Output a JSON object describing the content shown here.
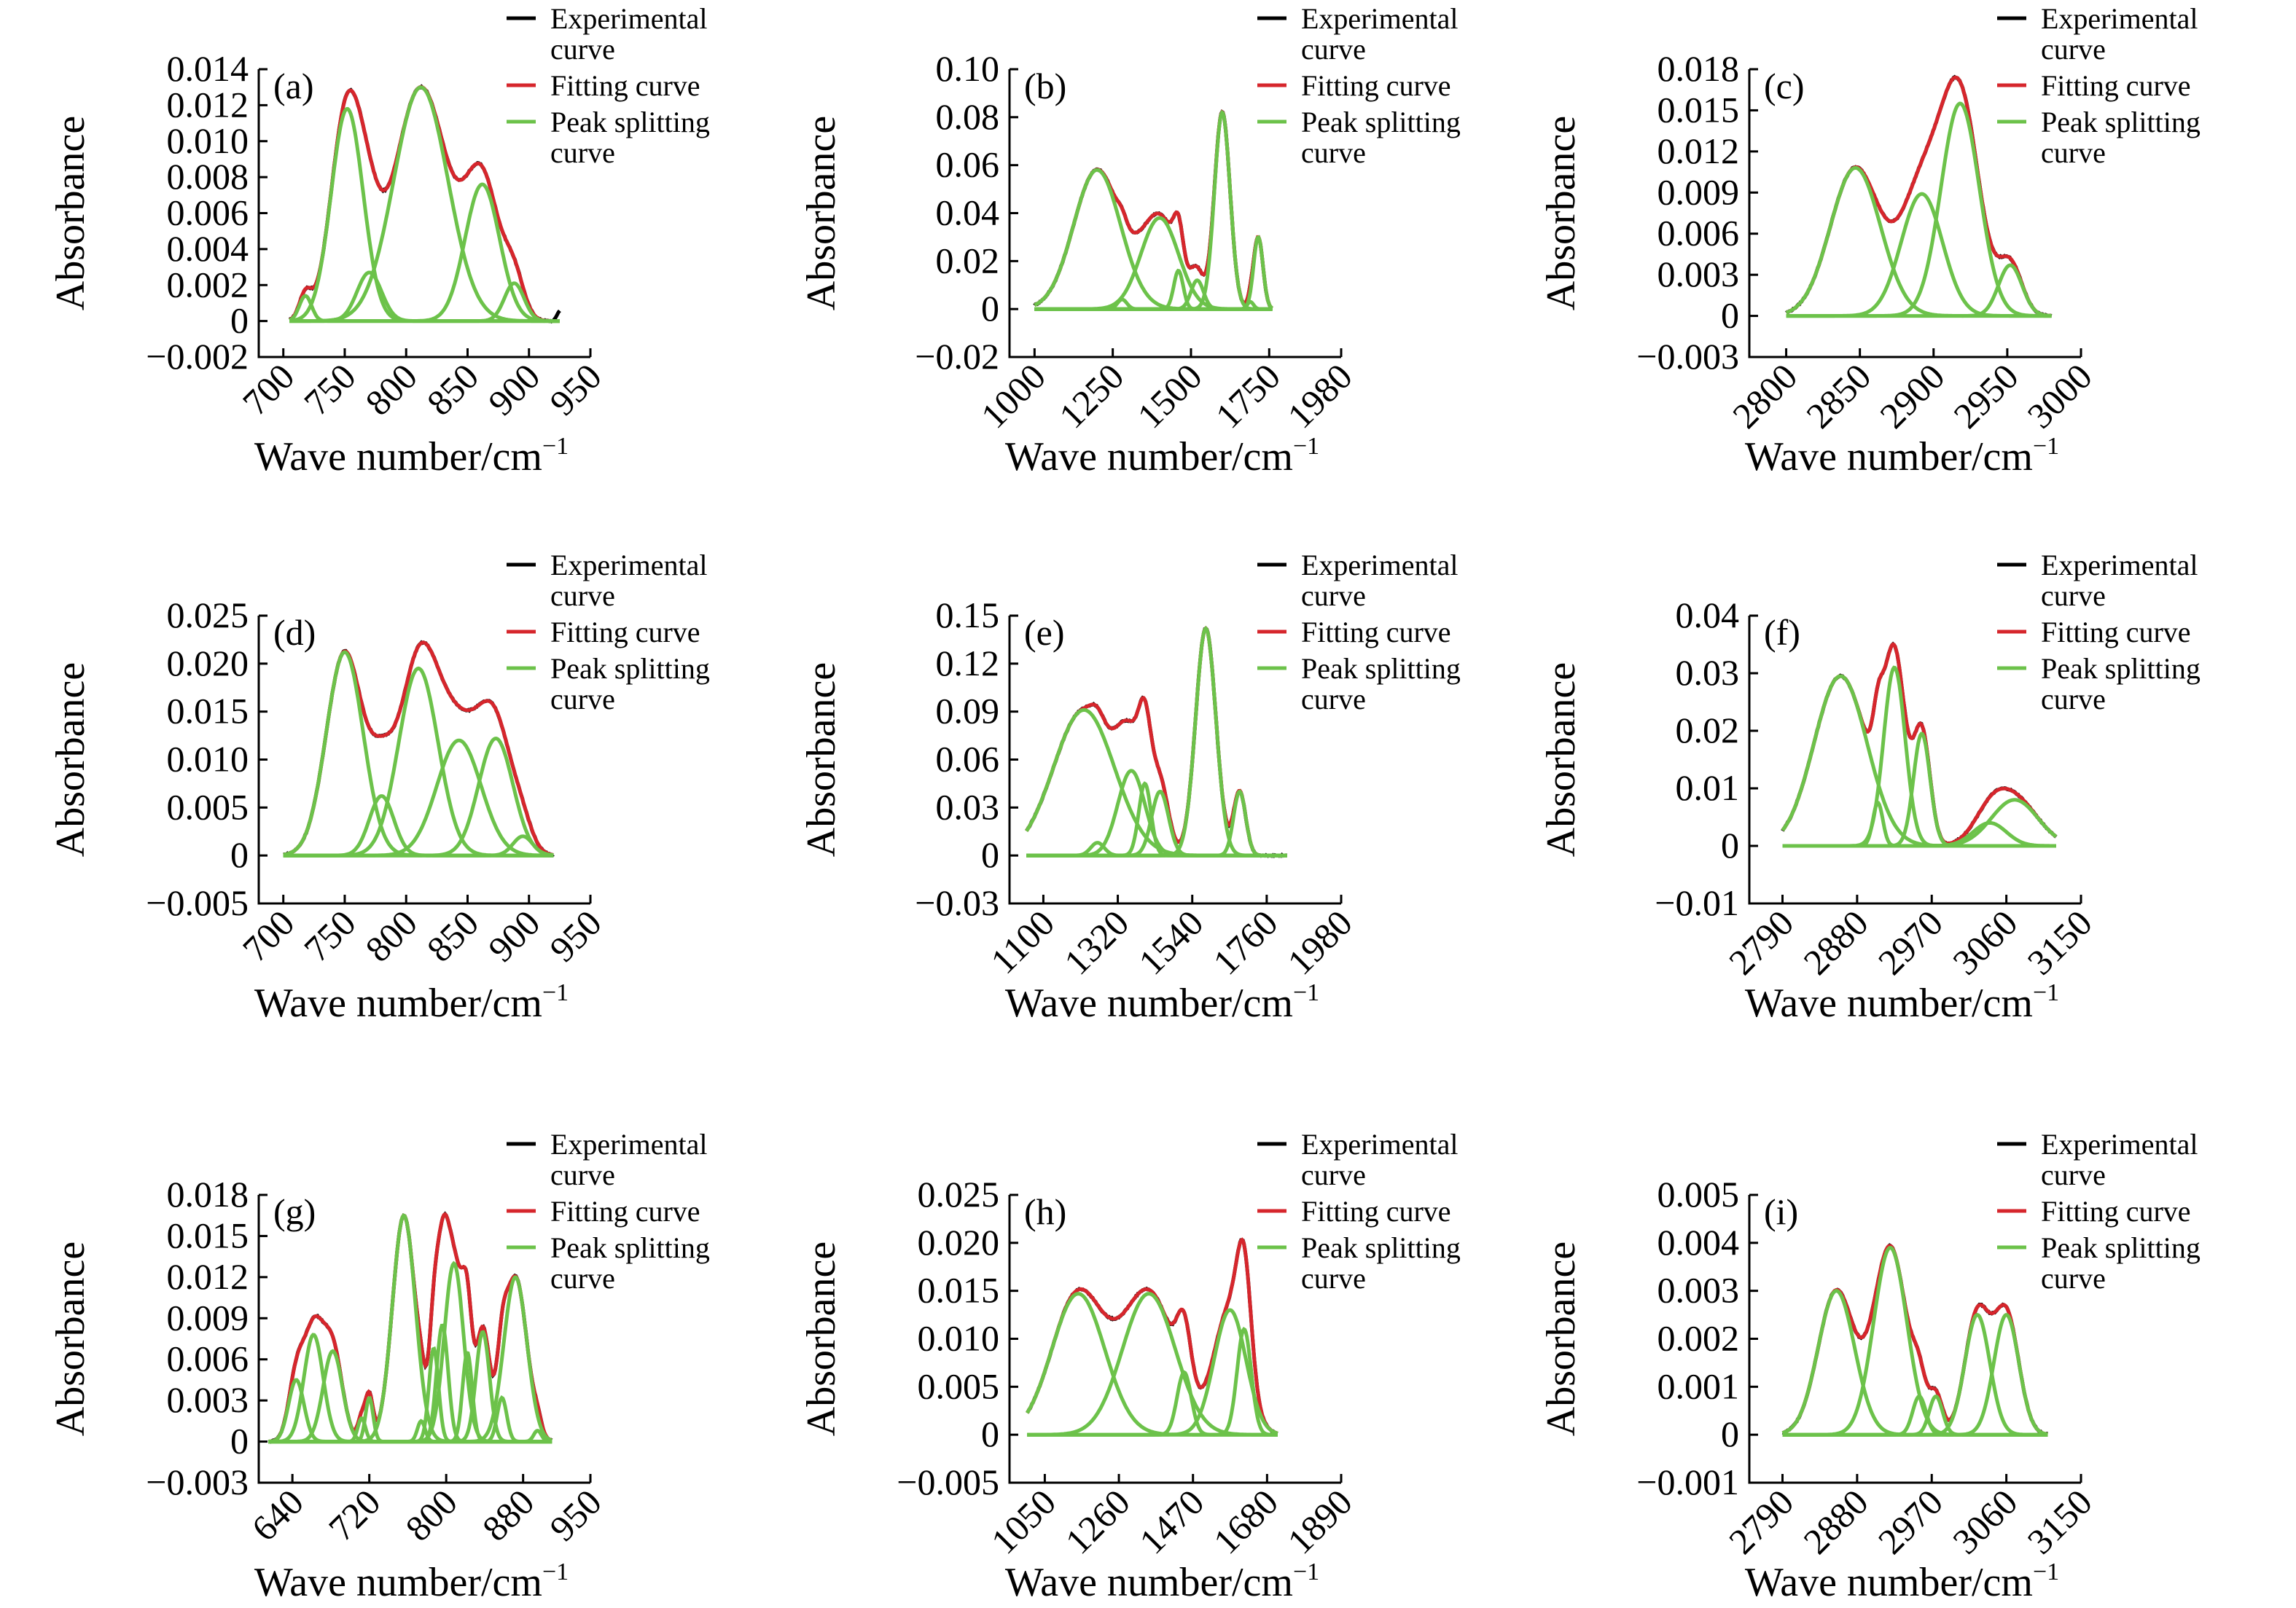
{
  "colors": {
    "experimental": "#000000",
    "fitting": "#d6262c",
    "peak": "#6cc24a"
  },
  "legend": {
    "experimental_line1": "Experimental",
    "experimental_line2": "curve",
    "fitting": "Fitting curve",
    "peak_line1": "Peak splitting",
    "peak_line2": "curve"
  },
  "chart_data": [
    {
      "type": "line",
      "panel_label": "(a)",
      "ylabel": "Absorbance",
      "xlabel": "Wave number/cm",
      "xlabel_superscript": "−1",
      "xlim": [
        680,
        950
      ],
      "ylim": [
        -0.002,
        0.014
      ],
      "xticks": [
        700,
        750,
        800,
        850,
        900,
        950
      ],
      "yticks": [
        -0.002,
        0,
        0.002,
        0.004,
        0.006,
        0.008,
        0.01,
        0.012,
        0.014
      ],
      "ytick_labels": [
        "−0.002",
        "0",
        "0.002",
        "0.004",
        "0.006",
        "0.008",
        "0.010",
        "0.012",
        "0.014"
      ],
      "x_range": [
        705,
        925
      ],
      "tail": [
        0.0,
        0.0006
      ],
      "peaks": [
        [
          718,
          0.0014,
          5
        ],
        [
          752,
          0.0118,
          13
        ],
        [
          770,
          0.0027,
          10
        ],
        [
          812,
          0.013,
          22
        ],
        [
          862,
          0.0076,
          14
        ],
        [
          888,
          0.0021,
          8
        ]
      ]
    },
    {
      "type": "line",
      "panel_label": "(b)",
      "ylabel": "Absorbance",
      "xlabel": "Wave number/cm",
      "xlabel_superscript": "−1",
      "xlim": [
        920,
        1980
      ],
      "ylim": [
        -0.02,
        0.1
      ],
      "xticks": [
        1000,
        1250,
        1500,
        1750,
        1980
      ],
      "yticks": [
        -0.02,
        0,
        0.02,
        0.04,
        0.06,
        0.08,
        0.1
      ],
      "ytick_labels": [
        "−0.02",
        "0",
        "0.02",
        "0.04",
        "0.06",
        "0.08",
        "0.10"
      ],
      "x_range": [
        1000,
        1760
      ],
      "tail": [
        0.0,
        0.0
      ],
      "peaks": [
        [
          1200,
          0.058,
          75
        ],
        [
          1280,
          0.004,
          15
        ],
        [
          1400,
          0.038,
          60
        ],
        [
          1460,
          0.016,
          15
        ],
        [
          1520,
          0.012,
          20
        ],
        [
          1600,
          0.082,
          25
        ],
        [
          1690,
          0.003,
          10
        ],
        [
          1715,
          0.03,
          15
        ]
      ]
    },
    {
      "type": "line",
      "panel_label": "(c)",
      "ylabel": "Absorbance",
      "xlabel": "Wave number/cm",
      "xlabel_superscript": "−1",
      "xlim": [
        2775,
        3000
      ],
      "ylim": [
        -0.003,
        0.018
      ],
      "xticks": [
        2800,
        2850,
        2900,
        2950,
        3000
      ],
      "yticks": [
        -0.003,
        0,
        0.003,
        0.006,
        0.009,
        0.012,
        0.015,
        0.018
      ],
      "ytick_labels": [
        "−0.003",
        "0",
        "0.003",
        "0.006",
        "0.009",
        "0.012",
        "0.015",
        "0.018"
      ],
      "x_range": [
        2800,
        2980
      ],
      "tail": [
        0.0,
        0.0
      ],
      "peaks": [
        [
          2847,
          0.0108,
          17
        ],
        [
          2892,
          0.0089,
          14
        ],
        [
          2918,
          0.0155,
          13
        ],
        [
          2952,
          0.0037,
          8
        ]
      ]
    },
    {
      "type": "line",
      "panel_label": "(d)",
      "ylabel": "Absorbance",
      "xlabel": "Wave number/cm",
      "xlabel_superscript": "−1",
      "xlim": [
        680,
        950
      ],
      "ylim": [
        -0.005,
        0.025
      ],
      "xticks": [
        700,
        750,
        800,
        850,
        900,
        950
      ],
      "yticks": [
        -0.005,
        0,
        0.005,
        0.01,
        0.015,
        0.02,
        0.025
      ],
      "ytick_labels": [
        "−0.005",
        "0",
        "0.005",
        "0.010",
        "0.015",
        "0.020",
        "0.025"
      ],
      "x_range": [
        700,
        920
      ],
      "tail": [
        0.0,
        0.0
      ],
      "peaks": [
        [
          750,
          0.0212,
          15
        ],
        [
          780,
          0.0062,
          10
        ],
        [
          810,
          0.0195,
          16
        ],
        [
          843,
          0.012,
          18
        ],
        [
          873,
          0.0122,
          14
        ],
        [
          895,
          0.002,
          8
        ]
      ]
    },
    {
      "type": "line",
      "panel_label": "(e)",
      "ylabel": "Absorbance",
      "xlabel": "Wave number/cm",
      "xlabel_superscript": "−1",
      "xlim": [
        1000,
        1980
      ],
      "ylim": [
        -0.03,
        0.15
      ],
      "xticks": [
        1100,
        1320,
        1540,
        1760,
        1980
      ],
      "yticks": [
        -0.03,
        0,
        0.03,
        0.06,
        0.09,
        0.12,
        0.15
      ],
      "ytick_labels": [
        "−0.03",
        "0",
        "0.03",
        "0.06",
        "0.09",
        "0.12",
        "0.15"
      ],
      "x_range": [
        1050,
        1820
      ],
      "tail": [
        0.0,
        0.0
      ],
      "peaks": [
        [
          1220,
          0.091,
          90
        ],
        [
          1260,
          0.008,
          20
        ],
        [
          1360,
          0.053,
          40
        ],
        [
          1400,
          0.045,
          18
        ],
        [
          1445,
          0.04,
          25
        ],
        [
          1580,
          0.142,
          30
        ],
        [
          1680,
          0.04,
          18
        ]
      ]
    },
    {
      "type": "line",
      "panel_label": "(f)",
      "ylabel": "Absorbance",
      "xlabel": "Wave number/cm",
      "xlabel_superscript": "−1",
      "xlim": [
        2750,
        3150
      ],
      "ylim": [
        -0.01,
        0.04
      ],
      "xticks": [
        2790,
        2880,
        2970,
        3060,
        3150
      ],
      "yticks": [
        -0.01,
        0,
        0.01,
        0.02,
        0.03,
        0.04
      ],
      "ytick_labels": [
        "−0.01",
        "0",
        "0.01",
        "0.02",
        "0.03",
        "0.04"
      ],
      "x_range": [
        2790,
        3120
      ],
      "tail": [
        0.0,
        0.0
      ],
      "peaks": [
        [
          2860,
          0.0295,
          32
        ],
        [
          2905,
          0.0075,
          6
        ],
        [
          2925,
          0.031,
          13
        ],
        [
          2958,
          0.0195,
          10
        ],
        [
          3040,
          0.004,
          20
        ],
        [
          3070,
          0.008,
          28
        ]
      ]
    },
    {
      "type": "line",
      "panel_label": "(g)",
      "ylabel": "Absorbance",
      "xlabel": "Wave number/cm",
      "xlabel_superscript": "−1",
      "xlim": [
        605,
        950
      ],
      "ylim": [
        -0.003,
        0.018
      ],
      "xticks": [
        640,
        720,
        800,
        880,
        950
      ],
      "yticks": [
        -0.003,
        0,
        0.003,
        0.006,
        0.009,
        0.012,
        0.015,
        0.018
      ],
      "ytick_labels": [
        "−0.003",
        "0",
        "0.003",
        "0.006",
        "0.009",
        "0.012",
        "0.015",
        "0.018"
      ],
      "x_range": [
        615,
        910
      ],
      "tail": [
        0.0,
        0.0
      ],
      "peaks": [
        [
          644,
          0.0045,
          8
        ],
        [
          662,
          0.0078,
          10
        ],
        [
          682,
          0.0066,
          10
        ],
        [
          712,
          0.0017,
          4
        ],
        [
          720,
          0.0032,
          4
        ],
        [
          756,
          0.0165,
          12
        ],
        [
          774,
          0.0015,
          4
        ],
        [
          787,
          0.0068,
          5
        ],
        [
          796,
          0.0085,
          6
        ],
        [
          808,
          0.013,
          10
        ],
        [
          822,
          0.0065,
          5
        ],
        [
          838,
          0.008,
          7
        ],
        [
          858,
          0.0032,
          5
        ],
        [
          872,
          0.012,
          12
        ],
        [
          895,
          0.0008,
          4
        ]
      ]
    },
    {
      "type": "line",
      "panel_label": "(h)",
      "ylabel": "Absorbance",
      "xlabel": "Wave number/cm",
      "xlabel_superscript": "−1",
      "xlim": [
        950,
        1890
      ],
      "ylim": [
        -0.005,
        0.025
      ],
      "xticks": [
        1050,
        1260,
        1470,
        1680,
        1890
      ],
      "yticks": [
        -0.005,
        0,
        0.005,
        0.01,
        0.015,
        0.02,
        0.025
      ],
      "ytick_labels": [
        "−0.005",
        "0",
        "0.005",
        "0.010",
        "0.015",
        "0.020",
        "0.025"
      ],
      "x_range": [
        1000,
        1710
      ],
      "tail": [
        0.0,
        0.0
      ],
      "peaks": [
        [
          1145,
          0.0147,
          75
        ],
        [
          1345,
          0.0147,
          75
        ],
        [
          1445,
          0.0065,
          20
        ],
        [
          1575,
          0.013,
          45
        ],
        [
          1615,
          0.011,
          20
        ]
      ]
    },
    {
      "type": "line",
      "panel_label": "(i)",
      "ylabel": "Absorbance",
      "xlabel": "Wave number/cm",
      "xlabel_superscript": "−1",
      "xlim": [
        2750,
        3150
      ],
      "ylim": [
        -0.001,
        0.005
      ],
      "xticks": [
        2790,
        2880,
        2970,
        3060,
        3150
      ],
      "yticks": [
        -0.001,
        0,
        0.001,
        0.002,
        0.003,
        0.004,
        0.005
      ],
      "ytick_labels": [
        "−0.001",
        "0",
        "0.001",
        "0.002",
        "0.003",
        "0.004",
        "0.005"
      ],
      "x_range": [
        2790,
        3110
      ],
      "tail": [
        0.0,
        0.0
      ],
      "peaks": [
        [
          2855,
          0.003,
          22
        ],
        [
          2920,
          0.0039,
          20
        ],
        [
          2955,
          0.0008,
          8
        ],
        [
          2975,
          0.0008,
          8
        ],
        [
          3025,
          0.0025,
          15
        ],
        [
          3060,
          0.0025,
          15
        ]
      ]
    }
  ]
}
